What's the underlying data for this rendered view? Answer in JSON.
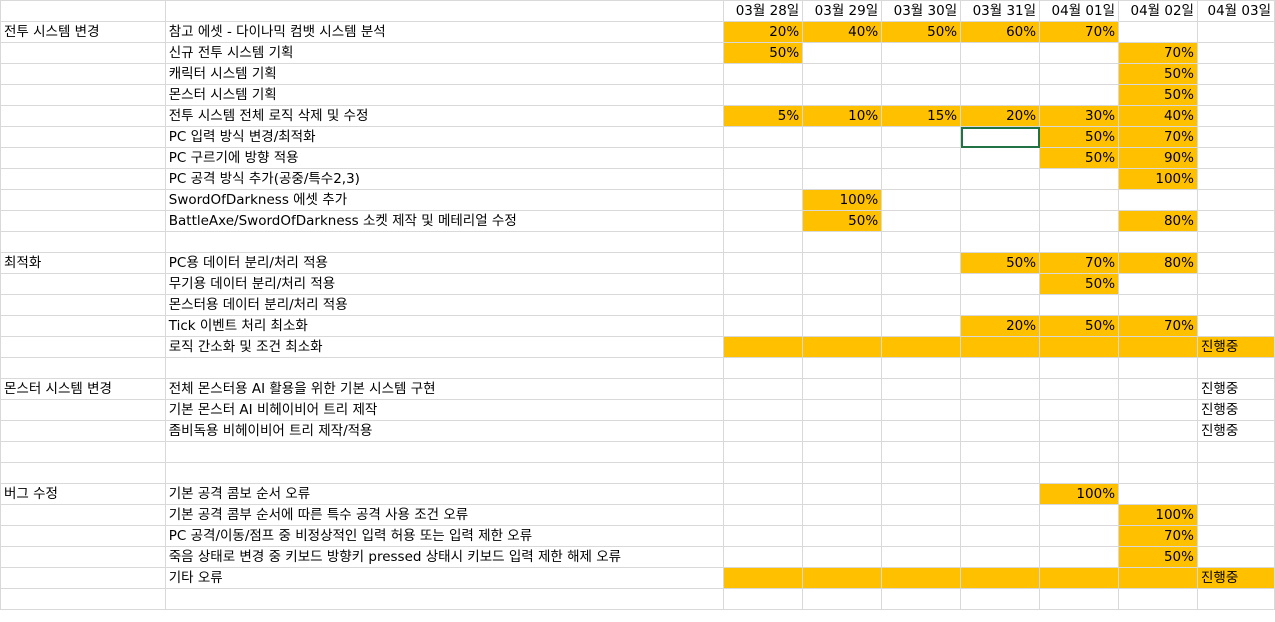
{
  "dates": [
    "03월 28일",
    "03월 29일",
    "03월 30일",
    "03월 31일",
    "04월 01일",
    "04월 02일",
    "04월 03일"
  ],
  "rows": [
    {
      "cat": "전투 시스템 변경",
      "task": "참고 에셋 - 다이나믹 컴뱃 시스템 분석",
      "cells": [
        "20%",
        "40%",
        "50%",
        "60%",
        "70%",
        "",
        ""
      ],
      "fill": [
        1,
        1,
        1,
        1,
        1,
        0,
        0
      ]
    },
    {
      "cat": "",
      "task": "신규 전투 시스템 기획",
      "cells": [
        "50%",
        "",
        "",
        "",
        "",
        "70%",
        ""
      ],
      "fill": [
        1,
        0,
        0,
        0,
        0,
        1,
        0
      ]
    },
    {
      "cat": "",
      "task": "캐릭터 시스템 기획",
      "cells": [
        "",
        "",
        "",
        "",
        "",
        "50%",
        ""
      ],
      "fill": [
        0,
        0,
        0,
        0,
        0,
        1,
        0
      ]
    },
    {
      "cat": "",
      "task": "몬스터 시스템 기획",
      "cells": [
        "",
        "",
        "",
        "",
        "",
        "50%",
        ""
      ],
      "fill": [
        0,
        0,
        0,
        0,
        0,
        1,
        0
      ]
    },
    {
      "cat": "",
      "task": "전투 시스템 전체 로직 삭제 및 수정",
      "cells": [
        "5%",
        "10%",
        "15%",
        "20%",
        "30%",
        "40%",
        ""
      ],
      "fill": [
        1,
        1,
        1,
        1,
        1,
        1,
        0
      ]
    },
    {
      "cat": "",
      "task": "PC 입력 방식 변경/최적화",
      "cells": [
        "",
        "",
        "",
        "",
        "50%",
        "70%",
        ""
      ],
      "fill": [
        0,
        0,
        0,
        0,
        1,
        1,
        0
      ],
      "sel": 3
    },
    {
      "cat": "",
      "task": "PC 구르기에 방향 적용",
      "cells": [
        "",
        "",
        "",
        "",
        "50%",
        "90%",
        ""
      ],
      "fill": [
        0,
        0,
        0,
        0,
        1,
        1,
        0
      ]
    },
    {
      "cat": "",
      "task": "PC 공격 방식 추가(공중/특수2,3)",
      "cells": [
        "",
        "",
        "",
        "",
        "",
        "100%",
        ""
      ],
      "fill": [
        0,
        0,
        0,
        0,
        0,
        1,
        0
      ]
    },
    {
      "cat": "",
      "task": "SwordOfDarkness 에셋 추가",
      "cells": [
        "",
        "100%",
        "",
        "",
        "",
        "",
        ""
      ],
      "fill": [
        0,
        1,
        0,
        0,
        0,
        0,
        0
      ]
    },
    {
      "cat": "",
      "task": "BattleAxe/SwordOfDarkness 소켓 제작 및 메테리얼 수정",
      "cells": [
        "",
        "50%",
        "",
        "",
        "",
        "80%",
        ""
      ],
      "fill": [
        0,
        1,
        0,
        0,
        0,
        1,
        0
      ]
    },
    {
      "cat": "",
      "task": "",
      "cells": [
        "",
        "",
        "",
        "",
        "",
        "",
        ""
      ],
      "fill": [
        0,
        0,
        0,
        0,
        0,
        0,
        0
      ]
    },
    {
      "cat": "최적화",
      "task": "PC용 데이터 분리/처리 적용",
      "cells": [
        "",
        "",
        "",
        "50%",
        "70%",
        "80%",
        ""
      ],
      "fill": [
        0,
        0,
        0,
        1,
        1,
        1,
        0
      ]
    },
    {
      "cat": "",
      "task": "무기용 데이터 분리/처리 적용",
      "cells": [
        "",
        "",
        "",
        "",
        "50%",
        "",
        ""
      ],
      "fill": [
        0,
        0,
        0,
        0,
        1,
        0,
        0
      ]
    },
    {
      "cat": "",
      "task": "몬스터용 데이터 분리/처리 적용",
      "cells": [
        "",
        "",
        "",
        "",
        "",
        "",
        ""
      ],
      "fill": [
        0,
        0,
        0,
        0,
        0,
        0,
        0
      ]
    },
    {
      "cat": "",
      "task": "Tick 이벤트 처리 최소화",
      "cells": [
        "",
        "",
        "",
        "20%",
        "50%",
        "70%",
        ""
      ],
      "fill": [
        0,
        0,
        0,
        1,
        1,
        1,
        0
      ]
    },
    {
      "cat": "",
      "task": "로직 간소화 및 조건 최소화",
      "cells": [
        "",
        "",
        "",
        "",
        "",
        "",
        "진행중"
      ],
      "fill": [
        1,
        1,
        1,
        1,
        1,
        1,
        1
      ]
    },
    {
      "cat": "",
      "task": "",
      "cells": [
        "",
        "",
        "",
        "",
        "",
        "",
        ""
      ],
      "fill": [
        0,
        0,
        0,
        0,
        0,
        0,
        0
      ]
    },
    {
      "cat": "몬스터 시스템 변경",
      "task": "전체 몬스터용 AI 활용을 위한 기본 시스템 구현",
      "cells": [
        "",
        "",
        "",
        "",
        "",
        "",
        "진행중"
      ],
      "fill": [
        0,
        0,
        0,
        0,
        0,
        0,
        0
      ]
    },
    {
      "cat": "",
      "task": "기본 몬스터 AI 비헤이비어 트리 제작",
      "cells": [
        "",
        "",
        "",
        "",
        "",
        "",
        "진행중"
      ],
      "fill": [
        0,
        0,
        0,
        0,
        0,
        0,
        0
      ]
    },
    {
      "cat": "",
      "task": "좀비독용 비헤이비어 트리 제작/적용",
      "cells": [
        "",
        "",
        "",
        "",
        "",
        "",
        "진행중"
      ],
      "fill": [
        0,
        0,
        0,
        0,
        0,
        0,
        0
      ]
    },
    {
      "cat": "",
      "task": "",
      "cells": [
        "",
        "",
        "",
        "",
        "",
        "",
        ""
      ],
      "fill": [
        0,
        0,
        0,
        0,
        0,
        0,
        0
      ]
    },
    {
      "cat": "",
      "task": "",
      "cells": [
        "",
        "",
        "",
        "",
        "",
        "",
        ""
      ],
      "fill": [
        0,
        0,
        0,
        0,
        0,
        0,
        0
      ]
    },
    {
      "cat": "버그 수정",
      "task": "기본 공격 콤보 순서 오류",
      "cells": [
        "",
        "",
        "",
        "",
        "100%",
        "",
        ""
      ],
      "fill": [
        0,
        0,
        0,
        0,
        1,
        0,
        0
      ]
    },
    {
      "cat": "",
      "task": "기본 공격 콤부 순서에 따른 특수 공격 사용 조건 오류",
      "cells": [
        "",
        "",
        "",
        "",
        "",
        "100%",
        ""
      ],
      "fill": [
        0,
        0,
        0,
        0,
        0,
        1,
        0
      ]
    },
    {
      "cat": "",
      "task": "PC 공격/이동/점프 중 비정상적인 입력 허용 또는 입력 제한 오류",
      "cells": [
        "",
        "",
        "",
        "",
        "",
        "70%",
        ""
      ],
      "fill": [
        0,
        0,
        0,
        0,
        0,
        1,
        0
      ]
    },
    {
      "cat": "",
      "task": "죽음 상태로 변경 중 키보드 방향키 pressed 상태시 키보드 입력 제한 해제 오류",
      "cells": [
        "",
        "",
        "",
        "",
        "",
        "50%",
        ""
      ],
      "fill": [
        0,
        0,
        0,
        0,
        0,
        1,
        0
      ]
    },
    {
      "cat": "",
      "task": "기타 오류",
      "cells": [
        "",
        "",
        "",
        "",
        "",
        "",
        "진행중"
      ],
      "fill": [
        1,
        1,
        1,
        1,
        1,
        1,
        1
      ]
    },
    {
      "cat": "",
      "task": "",
      "cells": [
        "",
        "",
        "",
        "",
        "",
        "",
        ""
      ],
      "fill": [
        0,
        0,
        0,
        0,
        0,
        0,
        0
      ]
    }
  ]
}
